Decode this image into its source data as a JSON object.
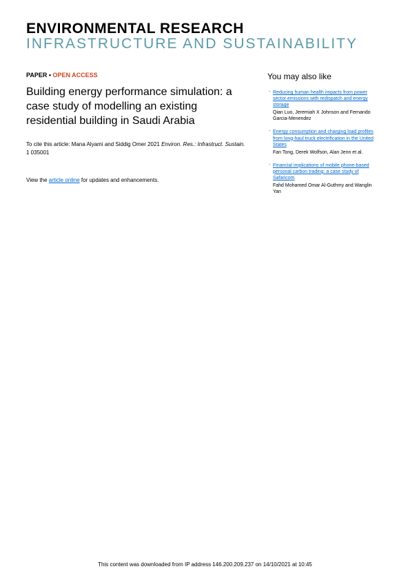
{
  "journal": {
    "line1": "ENVIRONMENTAL RESEARCH",
    "line2": "INFRASTRUCTURE AND SUSTAINABILITY"
  },
  "tags": {
    "paper": "PAPER",
    "separator": " • ",
    "open_access": "OPEN ACCESS"
  },
  "title": "Building energy performance simulation: a case study of modelling an existing residential building in Saudi Arabia",
  "citation": {
    "prefix": "To cite this article: Mana Alyami and Siddig Omer 2021 ",
    "journal_abbr": "Environ. Res.: Infrastruct. Sustain.",
    "suffix": " 1 035001"
  },
  "view_online": {
    "prefix": "View the ",
    "link_text": "article online",
    "suffix": " for updates and enhancements."
  },
  "sidebar": {
    "heading": "You may also like",
    "items": [
      {
        "title": "Reducing human health impacts from power sector emissions with redispatch and energy storage",
        "authors": "Qian Luo, Jeremiah X Johnson and Fernando Garcia-Menendez"
      },
      {
        "title": "Energy consumption and charging load profiles from long-haul truck electrification in the United States",
        "authors": "Fan Tong, Derek Wolfson, Alan Jenn et al."
      },
      {
        "title": "Financial implications of mobile phone-based personal carbon trading: a case study of Safaricom",
        "authors": "Fahd Mohamed Omar Al-Guthmy and Wanglin Yan"
      }
    ]
  },
  "footer": {
    "text": "This content was downloaded from IP address 146.200.209.237 on 14/10/2021 at 10:45"
  }
}
